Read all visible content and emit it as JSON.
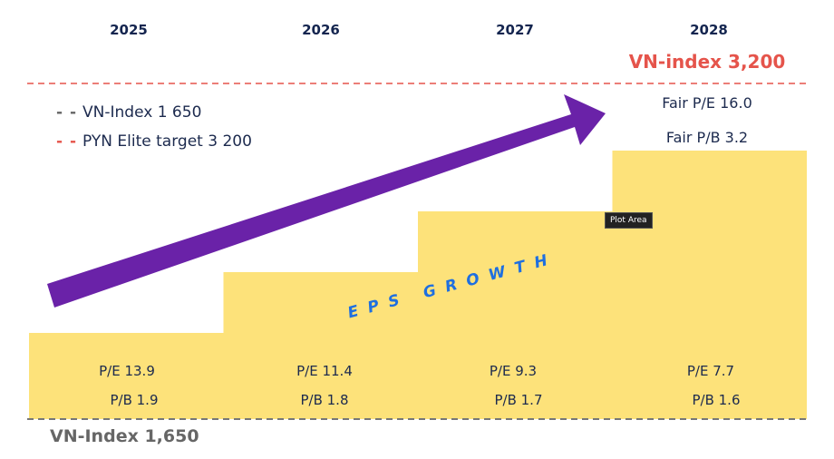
{
  "chart_data": {
    "type": "bar",
    "categories": [
      "2025",
      "2026",
      "2027",
      "2028"
    ],
    "step_level": [
      1,
      2,
      3,
      4
    ],
    "pe": [
      "P/E 13.9",
      "P/E 11.4",
      "P/E 9.3",
      "P/E 7.7"
    ],
    "pb": [
      "P/B 1.9",
      "P/B 1.8",
      "P/B 1.7",
      "P/B 1.6"
    ],
    "bar_color": "#fde27a",
    "legend": [
      {
        "label": "VN-Index 1 650",
        "color": "#666666"
      },
      {
        "label": "PYN Elite target 3 200",
        "color": "#e5544b"
      }
    ],
    "legend_placement": "top-left",
    "target_label": "VN-index 3,200",
    "fair_pe": "Fair P/E 16.0",
    "fair_pb": "Fair P/B 3.2",
    "baseline_label": "VN-Index 1,650",
    "arrow_label": "EPS GROWTH",
    "arrow_color": "#6a22a8",
    "arrow_label_color": "#1e6fe0",
    "grid": false
  },
  "tooltip": "Plot Area"
}
